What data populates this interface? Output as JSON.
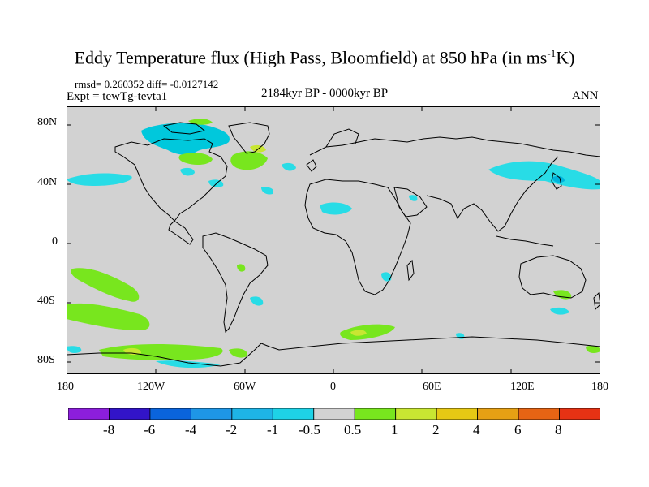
{
  "title": {
    "main": "Eddy Temperature flux (High Pass, Bloomfield) at 850 hPa (in ms",
    "sup": "-1",
    "end": "K)"
  },
  "stats": "rmsd= 0.260352 diff= -0.0127142",
  "experiment": "Expt = tewTg-tevta1",
  "period": "2184kyr BP - 0000kyr BP",
  "season": "ANN",
  "axes": {
    "y_labels": [
      "80N",
      "40N",
      "0",
      "40S",
      "80S"
    ],
    "x_labels": [
      "180",
      "120W",
      "60W",
      "0",
      "60E",
      "120E",
      "180"
    ]
  },
  "colors": {
    "land_bg": "#d2d2d2",
    "coast": "#000000",
    "neg_strong": "#00c8dc",
    "neg_light": "#28dce6",
    "pos_light": "#78e61e",
    "pos_mid": "#c8e632"
  },
  "colorbar": {
    "labels": [
      "-8",
      "-6",
      "-4",
      "-2",
      "-1",
      "-0.5",
      "0.5",
      "1",
      "2",
      "4",
      "6",
      "8"
    ],
    "colors": [
      "#8c1edc",
      "#3214c8",
      "#0a64dc",
      "#1e96e6",
      "#1eb4e6",
      "#1ed2e6",
      "#d2d2d2",
      "#78e61e",
      "#c8e632",
      "#e6c814",
      "#e6a014",
      "#e66414",
      "#e63214"
    ]
  }
}
